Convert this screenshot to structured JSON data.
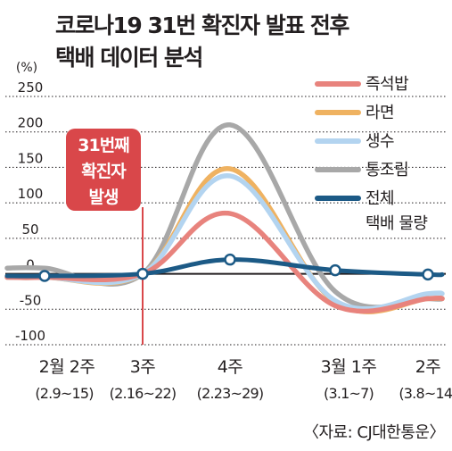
{
  "title_line1": "코로나19 31번 확진자 발표 전후",
  "title_line2": "택배 데이터 분석",
  "source": "〈자료: CJ대한통운〉",
  "annotation": [
    "31번째",
    "확진자",
    "발생"
  ],
  "colors": {
    "axis": "#231f20",
    "grid": "#231f20",
    "callout": "#d9474a",
    "callout_text": "#ffffff",
    "event_line": "#d9474a"
  },
  "chart_data": {
    "type": "line",
    "ylabel": "(%)",
    "ylim": [
      -100,
      250
    ],
    "yticks": [
      250,
      200,
      150,
      100,
      50,
      0,
      -50,
      -100
    ],
    "ytick_labels": [
      "250",
      "200",
      "150",
      "100",
      "50",
      "0",
      "-50",
      "-100"
    ],
    "categories": [
      {
        "week": "2월 2주",
        "range": "(2.9~15)"
      },
      {
        "week": "3주",
        "range": "(2.16~22)"
      },
      {
        "week": "4주",
        "range": "(2.23~29)"
      },
      {
        "week": "3월 1주",
        "range": "(3.1~7)"
      },
      {
        "week": "2주",
        "range": "(3.8~14)"
      }
    ],
    "series": [
      {
        "name": "즉석밥",
        "color": "#e8837d",
        "values": [
          -5,
          0,
          85,
          -45,
          -35
        ]
      },
      {
        "name": "라면",
        "color": "#efb261",
        "values": [
          -5,
          0,
          148,
          -40,
          -35
        ]
      },
      {
        "name": "생수",
        "color": "#b3d4f0",
        "values": [
          -5,
          0,
          138,
          -38,
          -28
        ]
      },
      {
        "name": "통조림",
        "color": "#a8a8a8",
        "values": [
          8,
          0,
          210,
          -25,
          -35
        ]
      },
      {
        "name": "전체 택배 물량",
        "name_lines": [
          "전체",
          "택배 물량"
        ],
        "color": "#1c5a86",
        "values": [
          -3,
          0,
          20,
          5,
          -1
        ],
        "markers": true
      }
    ],
    "event_index": 1
  }
}
